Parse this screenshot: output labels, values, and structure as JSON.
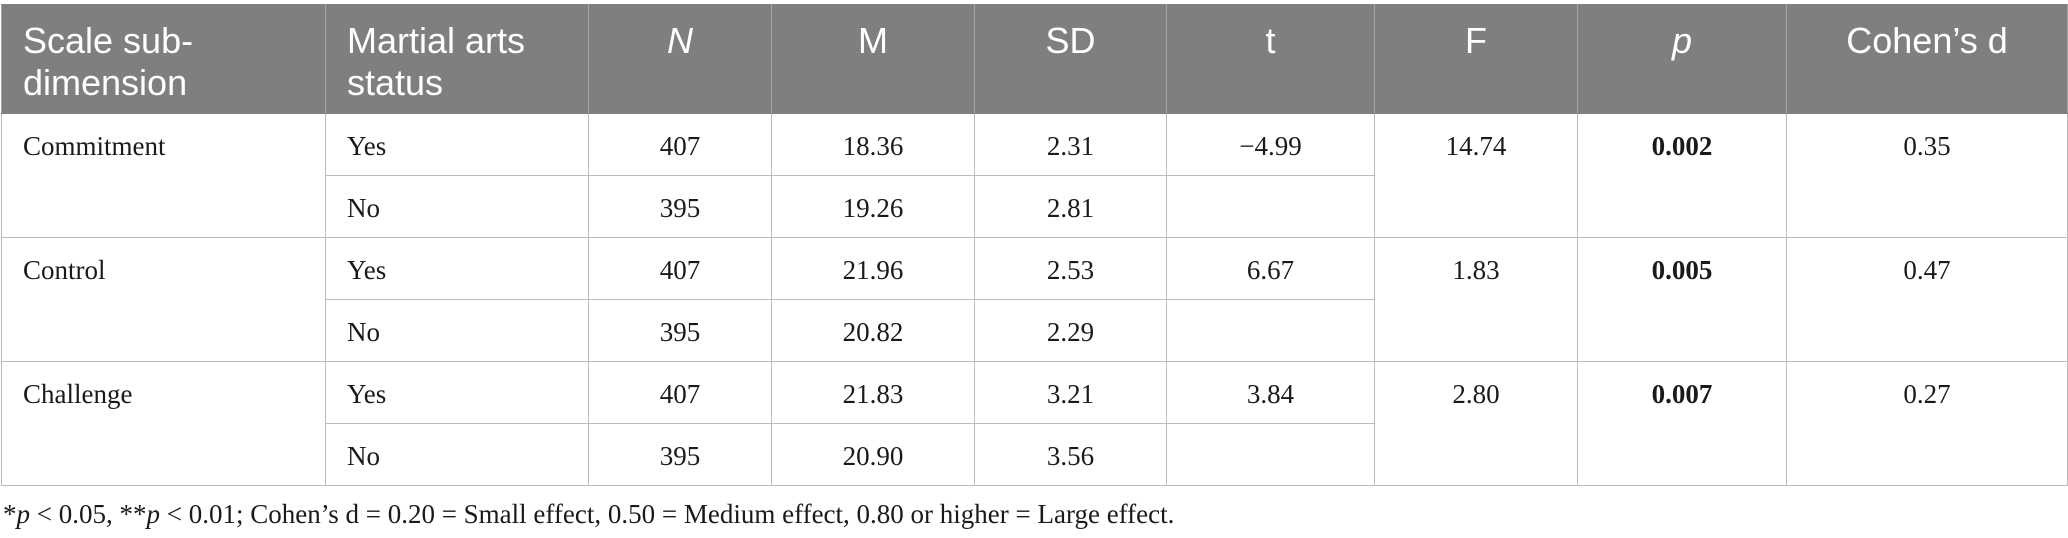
{
  "colors": {
    "header_bg": "#7f7f7f",
    "header_text": "#ffffff",
    "rule": "#bcbcbc",
    "text": "#1a1a1a"
  },
  "table": {
    "headers": {
      "dimension": "Scale sub-dimension",
      "status": "Martial arts status",
      "n": "N",
      "m": "M",
      "sd": "SD",
      "t": "t",
      "f": "F",
      "p": "p",
      "d": "Cohen’s d"
    },
    "groups": [
      {
        "dimension": "Commitment",
        "rows": [
          {
            "status": "Yes",
            "n": "407",
            "m": "18.36",
            "sd": "2.31",
            "t": "−4.99"
          },
          {
            "status": "No",
            "n": "395",
            "m": "19.26",
            "sd": "2.81"
          }
        ],
        "f": "14.74",
        "p": "0.002",
        "d": "0.35"
      },
      {
        "dimension": "Control",
        "rows": [
          {
            "status": "Yes",
            "n": "407",
            "m": "21.96",
            "sd": "2.53",
            "t": "6.67"
          },
          {
            "status": "No",
            "n": "395",
            "m": "20.82",
            "sd": "2.29"
          }
        ],
        "f": "1.83",
        "p": "0.005",
        "d": "0.47"
      },
      {
        "dimension": "Challenge",
        "rows": [
          {
            "status": "Yes",
            "n": "407",
            "m": "21.83",
            "sd": "3.21",
            "t": "3.84"
          },
          {
            "status": "No",
            "n": "395",
            "m": "20.90",
            "sd": "3.56"
          }
        ],
        "f": "2.80",
        "p": "0.007",
        "d": "0.27"
      }
    ]
  },
  "footnote": {
    "parts": [
      "*",
      "p",
      " < 0.05, **",
      "p",
      " < 0.01; Cohen’s d = 0.20 = Small effect, 0.50 = Medium effect, 0.80 or higher = Large effect."
    ]
  }
}
